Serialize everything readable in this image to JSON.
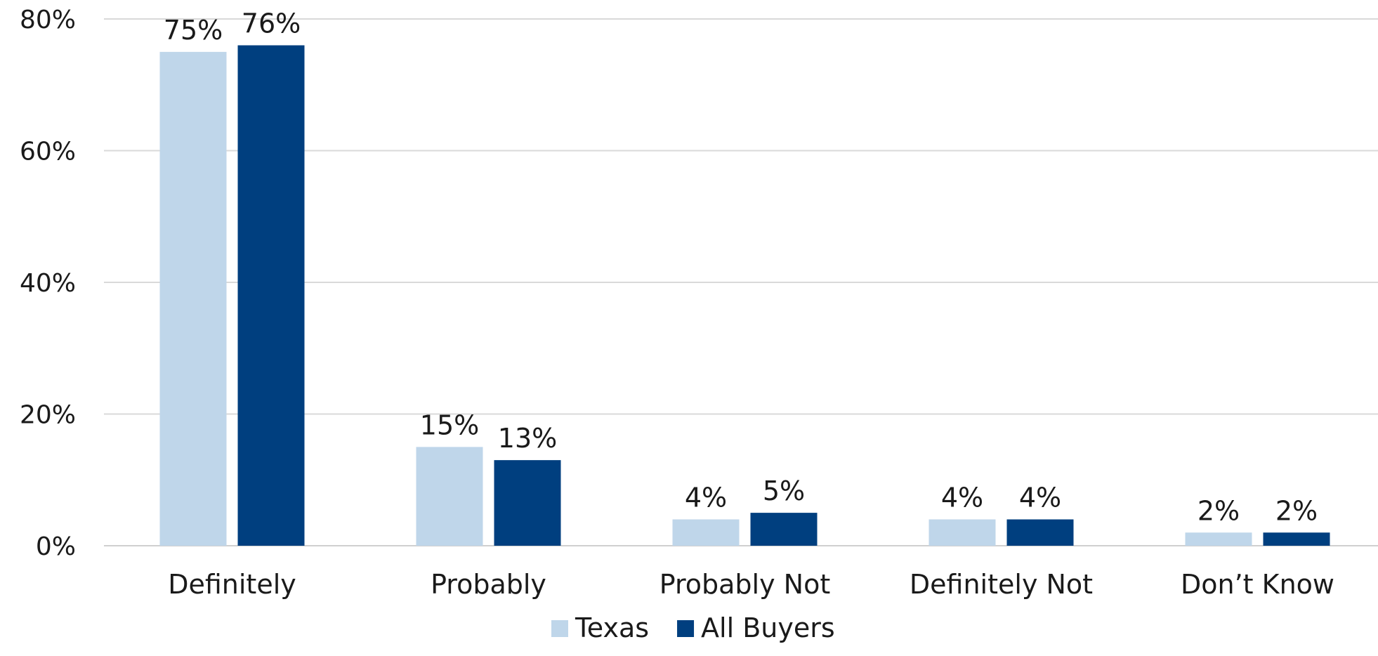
{
  "chart_data": {
    "type": "bar",
    "title": "",
    "xlabel": "",
    "ylabel": "",
    "categories": [
      "Definitely",
      "Probably",
      "Probably Not",
      "Definitely Not",
      "Don’t Know"
    ],
    "series": [
      {
        "name": "Texas",
        "values": [
          75,
          15,
          4,
          4,
          2
        ],
        "color": "#bfd6ea"
      },
      {
        "name": "All Buyers",
        "values": [
          76,
          13,
          5,
          4,
          2
        ],
        "color": "#003f7f"
      }
    ],
    "value_suffix": "%",
    "ylim": [
      0,
      80
    ],
    "yticks": [
      0,
      20,
      40,
      60,
      80
    ],
    "ytick_labels": [
      "0%",
      "20%",
      "40%",
      "60%",
      "80%"
    ],
    "grid": true,
    "legend_position": "bottom-center"
  }
}
